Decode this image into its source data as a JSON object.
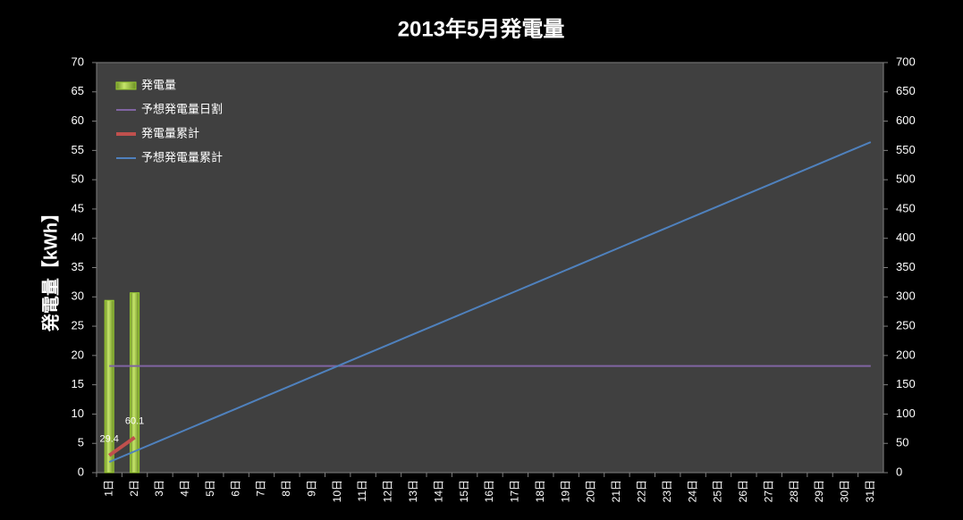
{
  "chart_data": {
    "type": "bar",
    "title": "2013年5月発電量",
    "y_label": "発電量【kWh】",
    "categories": [
      "1日",
      "2日",
      "3日",
      "4日",
      "5日",
      "6日",
      "7日",
      "8日",
      "9日",
      "10日",
      "11日",
      "12日",
      "13日",
      "14日",
      "15日",
      "16日",
      "17日",
      "18日",
      "19日",
      "20日",
      "21日",
      "22日",
      "23日",
      "24日",
      "25日",
      "26日",
      "27日",
      "28日",
      "29日",
      "30日",
      "31日"
    ],
    "ylim": [
      0,
      70
    ],
    "yticks": [
      0,
      5,
      10,
      15,
      20,
      25,
      30,
      35,
      40,
      45,
      50,
      55,
      60,
      65,
      70
    ],
    "y2lim": [
      0,
      700
    ],
    "y2ticks": [
      0,
      50,
      100,
      150,
      200,
      250,
      300,
      350,
      400,
      450,
      500,
      550,
      600,
      650,
      700
    ],
    "grid": false,
    "legend": "upper left",
    "series": [
      {
        "name": "発電量",
        "type": "bar",
        "color": "#9acd32",
        "values": [
          29.4,
          30.7,
          null,
          null,
          null,
          null,
          null,
          null,
          null,
          null,
          null,
          null,
          null,
          null,
          null,
          null,
          null,
          null,
          null,
          null,
          null,
          null,
          null,
          null,
          null,
          null,
          null,
          null,
          null,
          null,
          null
        ]
      },
      {
        "name": "予想発電量日割",
        "type": "line",
        "color": "#8064a2",
        "values": [
          18.2,
          18.2,
          18.2,
          18.2,
          18.2,
          18.2,
          18.2,
          18.2,
          18.2,
          18.2,
          18.2,
          18.2,
          18.2,
          18.2,
          18.2,
          18.2,
          18.2,
          18.2,
          18.2,
          18.2,
          18.2,
          18.2,
          18.2,
          18.2,
          18.2,
          18.2,
          18.2,
          18.2,
          18.2,
          18.2,
          18.2
        ]
      },
      {
        "name": "発電量累計",
        "type": "line",
        "axis": "y2",
        "color": "#c0504d",
        "data_labels": true,
        "values": [
          29.4,
          60.1,
          null,
          null,
          null,
          null,
          null,
          null,
          null,
          null,
          null,
          null,
          null,
          null,
          null,
          null,
          null,
          null,
          null,
          null,
          null,
          null,
          null,
          null,
          null,
          null,
          null,
          null,
          null,
          null,
          null
        ]
      },
      {
        "name": "予想発電量累計",
        "type": "line",
        "axis": "y2",
        "color": "#4f81bd",
        "values": [
          18.2,
          36.4,
          54.6,
          72.8,
          91,
          109.2,
          127.4,
          145.6,
          163.8,
          182,
          200.2,
          218.4,
          236.6,
          254.8,
          273,
          291.2,
          309.4,
          327.6,
          345.8,
          364,
          382.2,
          400.4,
          418.6,
          436.8,
          455,
          473.2,
          491.4,
          509.6,
          527.8,
          546,
          564.2
        ]
      }
    ]
  }
}
